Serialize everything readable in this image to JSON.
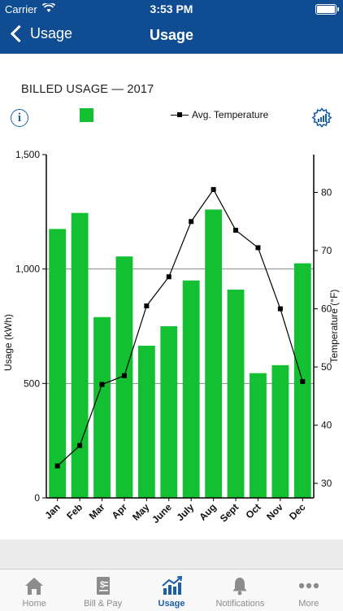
{
  "status_bar": {
    "carrier": "Carrier",
    "time": "3:53 PM"
  },
  "nav": {
    "back_label": "Usage",
    "title": "Usage"
  },
  "section": {
    "title": "BILLED USAGE — 2017"
  },
  "legend": {
    "usage_color": "#12c032",
    "temperature_label": "Avg. Temperature"
  },
  "tabs": [
    {
      "label": "Home",
      "icon": "home-icon",
      "active": false
    },
    {
      "label": "Bill & Pay",
      "icon": "bill-icon",
      "active": false
    },
    {
      "label": "Usage",
      "icon": "usage-chart-icon",
      "active": true
    },
    {
      "label": "Notifications",
      "icon": "bell-icon",
      "active": false
    },
    {
      "label": "More",
      "icon": "more-dots-icon",
      "active": false
    }
  ],
  "colors": {
    "brand": "#0f4c92",
    "accent": "#1b5fa8",
    "bar": "#12c032"
  },
  "chart_data": {
    "type": "bar",
    "categories": [
      "Jan",
      "Feb",
      "Mar",
      "Apr",
      "May",
      "June",
      "July",
      "Aug",
      "Sept",
      "Oct",
      "Nov",
      "Dec"
    ],
    "series": [
      {
        "name": "",
        "type": "bar",
        "axis": "left",
        "values": [
          1175,
          1245,
          790,
          1055,
          665,
          750,
          950,
          1260,
          910,
          545,
          580,
          1025
        ]
      },
      {
        "name": "Avg. Temperature",
        "type": "line",
        "axis": "right",
        "values": [
          33,
          36.5,
          47,
          48.5,
          60.5,
          65.5,
          75,
          80.5,
          73.5,
          70.5,
          60,
          47.5
        ]
      }
    ],
    "ylabel": "Usage (kWh)",
    "y2label": "Temperature (°F)",
    "ylim": [
      0,
      1500
    ],
    "yticks": [
      "0",
      "500",
      "1,000",
      "1,500"
    ],
    "y2lim": [
      27.5,
      86.5
    ],
    "y2ticks": [
      30,
      40,
      50,
      60,
      70,
      80
    ],
    "grid": true
  }
}
